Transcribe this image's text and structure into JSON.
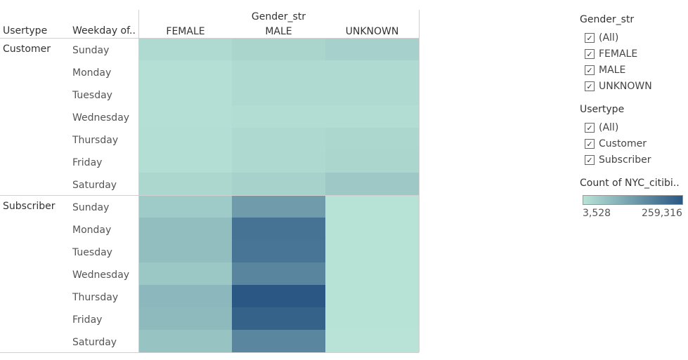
{
  "chart_data": {
    "type": "heatmap",
    "title": "",
    "column_field": "Gender_str",
    "row_fields": [
      "Usertype",
      "Weekday of.."
    ],
    "columns": [
      "FEMALE",
      "MALE",
      "UNKNOWN"
    ],
    "groups": [
      {
        "name": "Customer",
        "rows": [
          {
            "label": "Sunday",
            "values": [
              20000,
              30000,
              38000
            ]
          },
          {
            "label": "Monday",
            "values": [
              10000,
              20000,
              20000
            ]
          },
          {
            "label": "Tuesday",
            "values": [
              10000,
              20000,
              20000
            ]
          },
          {
            "label": "Wednesday",
            "values": [
              10000,
              15000,
              15000
            ]
          },
          {
            "label": "Thursday",
            "values": [
              12000,
              22000,
              25000
            ]
          },
          {
            "label": "Friday",
            "values": [
              12000,
              22000,
              28000
            ]
          },
          {
            "label": "Saturday",
            "values": [
              25000,
              35000,
              52000
            ]
          }
        ]
      },
      {
        "name": "Subscriber",
        "rows": [
          {
            "label": "Sunday",
            "values": [
              50000,
              135000,
              5000
            ]
          },
          {
            "label": "Monday",
            "values": [
              72000,
              208000,
              5000
            ]
          },
          {
            "label": "Tuesday",
            "values": [
              72000,
              205000,
              5000
            ]
          },
          {
            "label": "Wednesday",
            "values": [
              55000,
              175000,
              5000
            ]
          },
          {
            "label": "Thursday",
            "values": [
              82000,
              259316,
              5000
            ]
          },
          {
            "label": "Friday",
            "values": [
              80000,
              240000,
              5000
            ]
          },
          {
            "label": "Saturday",
            "values": [
              62000,
              172000,
              3528
            ]
          }
        ]
      }
    ],
    "color_scale": {
      "title": "Count of NYC_citibi..",
      "min": 3528,
      "max": 259316,
      "min_label": "3,528",
      "max_label": "259,316",
      "color_low": "#b8e3d6",
      "color_high": "#2a5783"
    }
  },
  "filters": [
    {
      "title": "Gender_str",
      "items": [
        {
          "label": "(All)",
          "checked": true
        },
        {
          "label": "FEMALE",
          "checked": true
        },
        {
          "label": "MALE",
          "checked": true
        },
        {
          "label": "UNKNOWN",
          "checked": true
        }
      ]
    },
    {
      "title": "Usertype",
      "items": [
        {
          "label": "(All)",
          "checked": true
        },
        {
          "label": "Customer",
          "checked": true
        },
        {
          "label": "Subscriber",
          "checked": true
        }
      ]
    }
  ],
  "check_mark": "✓"
}
